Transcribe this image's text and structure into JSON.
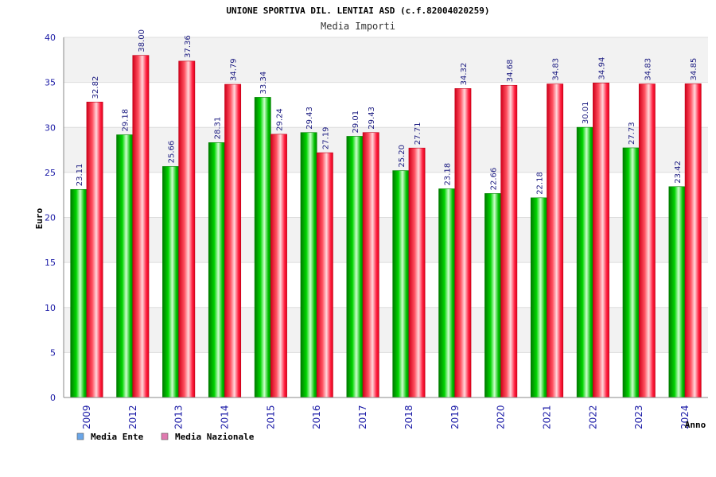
{
  "chart_data": {
    "type": "bar",
    "title": "UNIONE SPORTIVA DIL. LENTIAI ASD (c.f.82004020259)",
    "subtitle": "Media Importi",
    "xlabel": "Anno",
    "ylabel": "Euro",
    "ylim": [
      0,
      40
    ],
    "yticks": [
      0,
      5,
      10,
      15,
      20,
      25,
      30,
      35,
      40
    ],
    "grid": true,
    "legend_position": "bottom-left",
    "categories": [
      "2009",
      "2012",
      "2013",
      "2014",
      "2015",
      "2016",
      "2017",
      "2018",
      "2019",
      "2020",
      "2021",
      "2022",
      "2023",
      "2024"
    ],
    "series": [
      {
        "name": "Media Ente",
        "color": "#00b000",
        "legend_color": "#6aa6e8",
        "values": [
          23.11,
          29.18,
          25.66,
          28.31,
          33.34,
          29.43,
          29.01,
          25.2,
          23.18,
          22.66,
          22.18,
          30.01,
          27.73,
          23.42
        ],
        "labels": [
          "23.11",
          "29.18",
          "25.66",
          "28.31",
          "33.34",
          "29.43",
          "29.01",
          "25.20",
          "23.18",
          "22.66",
          "22.18",
          "30.01",
          "27.73",
          "23.42"
        ]
      },
      {
        "name": "Media Nazionale",
        "color": "#e8102a",
        "legend_color": "#e07ab0",
        "values": [
          32.82,
          38.0,
          37.36,
          34.79,
          29.24,
          27.19,
          29.43,
          27.71,
          34.32,
          34.68,
          34.83,
          34.94,
          34.83,
          34.85
        ],
        "labels": [
          "32.82",
          "38.00",
          "37.36",
          "34.79",
          "29.24",
          "27.19",
          "29.43",
          "27.71",
          "34.32",
          "34.68",
          "34.83",
          "34.94",
          "34.83",
          "34.85"
        ]
      }
    ]
  }
}
